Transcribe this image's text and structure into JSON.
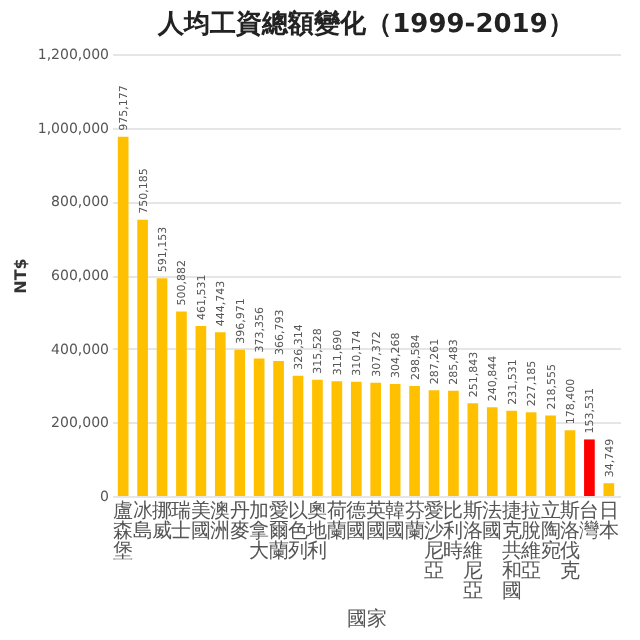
{
  "chart_data": {
    "type": "bar",
    "title": "人均工資總額變化（1999-2019）",
    "xlabel": "國家",
    "ylabel": "NT$",
    "categories": [
      "盧森堡",
      "冰島",
      "挪威",
      "瑞士",
      "美國",
      "澳洲",
      "丹麥",
      "加拿大",
      "愛爾蘭",
      "以色列",
      "奧地利",
      "荷蘭",
      "德國",
      "英國",
      "韓國",
      "芬蘭",
      "愛沙尼亞",
      "比利時",
      "斯洛維尼亞",
      "法國",
      "捷克共和國",
      "拉脫維亞",
      "立陶宛",
      "斯洛伐克",
      "台灣",
      "日本"
    ],
    "values": [
      975177,
      750185,
      591153,
      500882,
      461531,
      444743,
      396971,
      373356,
      366793,
      326314,
      315528,
      311690,
      310174,
      307372,
      304268,
      298584,
      287261,
      285483,
      251843,
      240844,
      231531,
      227185,
      218555,
      178400,
      153531,
      34749
    ],
    "colors": [
      "#ffc000",
      "#ffc000",
      "#ffc000",
      "#ffc000",
      "#ffc000",
      "#ffc000",
      "#ffc000",
      "#ffc000",
      "#ffc000",
      "#ffc000",
      "#ffc000",
      "#ffc000",
      "#ffc000",
      "#ffc000",
      "#ffc000",
      "#ffc000",
      "#ffc000",
      "#ffc000",
      "#ffc000",
      "#ffc000",
      "#ffc000",
      "#ffc000",
      "#ffc000",
      "#ffc000",
      "#ff0000",
      "#ffc000"
    ],
    "value_labels": [
      "975,177",
      "750,185",
      "591,153",
      "500,882",
      "461,531",
      "444,743",
      "396,971",
      "373,356",
      "366,793",
      "326,314",
      "315,528",
      "311,690",
      "310,174",
      "307,372",
      "304,268",
      "298,584",
      "287,261",
      "285,483",
      "251,843",
      "240,844",
      "231,531",
      "227,185",
      "218,555",
      "178,400",
      "153,531",
      "34,749"
    ],
    "ylim": [
      0,
      1200000
    ],
    "yticks": [
      0,
      {
        "value": 200000,
        "label": "200,000"
      },
      {
        "value": 400000,
        "label": "400,000"
      },
      {
        "value": 600000,
        "label": "600,000"
      },
      {
        "value": 800000,
        "label": "800,000"
      },
      {
        "value": 1000000,
        "label": "1,000,000"
      },
      {
        "value": 1200000,
        "label": "1,200,000"
      }
    ],
    "grid": "y"
  }
}
